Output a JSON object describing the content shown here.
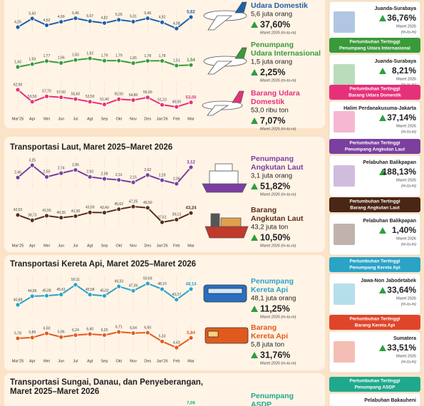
{
  "chart_data": [
    {
      "type": "line",
      "color": "#1f5fa8",
      "values": [
        4.26,
        5.43,
        4.52,
        4.99,
        5.46,
        5.07,
        4.82,
        5.26,
        5.01,
        5.46,
        4.92,
        4.08,
        5.62
      ],
      "value_labels": [
        "4,26",
        "5,43",
        "4,52",
        "4,99",
        "5,46",
        "5,07",
        "4,82",
        "5,26",
        "5,01",
        "5,46",
        "4,92",
        "4,08",
        "5,62"
      ]
    },
    {
      "type": "line",
      "color": "#3a9a3a",
      "values": [
        1.43,
        1.59,
        1.77,
        1.66,
        1.83,
        1.92,
        1.79,
        1.79,
        1.65,
        1.78,
        1.78,
        1.51,
        1.54
      ],
      "value_labels": [
        "1,43",
        "1,59",
        "1,77",
        "1,66",
        "1,83",
        "1,92",
        "1,79",
        "1,79",
        "1,65",
        "1,78",
        "1,78",
        "1,51",
        "1,54"
      ]
    },
    {
      "type": "line",
      "color": "#e6317a",
      "categories": [
        "Mar'25",
        "Apr",
        "Mei",
        "Jun",
        "Jul",
        "Agt",
        "Sep",
        "Okt",
        "Nov",
        "Des",
        "Jan'26",
        "Feb",
        "Mar"
      ],
      "values": [
        62.9,
        53.5,
        57.7,
        57.0,
        55.6,
        53.5,
        51.4,
        55.5,
        54.8,
        56.9,
        51.1,
        49.5,
        53.0
      ],
      "value_labels": [
        "62,90",
        "53,50",
        "57,70",
        "57,00",
        "55,60",
        "53,50",
        "51,40",
        "55,50",
        "54,80",
        "56,90",
        "51,10",
        "49,50",
        "53,00"
      ]
    },
    {
      "type": "line",
      "color": "#7b3fa0",
      "values": [
        2.46,
        3.25,
        2.5,
        2.74,
        2.95,
        2.5,
        2.38,
        2.31,
        2.15,
        2.62,
        2.29,
        2.06,
        3.12
      ],
      "value_labels": [
        "2,46",
        "3,25",
        "2,50",
        "2,74",
        "2,95",
        "2,50",
        "2,38",
        "2,31",
        "2,15",
        "2,62",
        "2,29",
        "2,06",
        "3,12"
      ]
    },
    {
      "type": "line",
      "color": "#5a2d1a",
      "categories": [
        "Mar'25",
        "Apr",
        "Mei",
        "Jun",
        "Jul",
        "Agt",
        "Sep",
        "Okt",
        "Nov",
        "Des",
        "Jan'26",
        "Feb",
        "Mar"
      ],
      "values": [
        42.02,
        38.73,
        41.55,
        40.35,
        41.3,
        43.59,
        43.49,
        45.62,
        47.25,
        46.5,
        37.51,
        39.13,
        43.24
      ],
      "value_labels": [
        "42,02",
        "38,73",
        "41,55",
        "40,35",
        "41,30",
        "43,59",
        "43,49",
        "45,62",
        "47,25",
        "46,50",
        "37,51",
        "39,13",
        "43,24"
      ]
    },
    {
      "type": "line",
      "color": "#2aa3c7",
      "values": [
        40.88,
        44.85,
        45.08,
        45.61,
        50.11,
        45.58,
        45.02,
        49.33,
        47.36,
        50.69,
        48.1,
        43.27,
        48.14
      ],
      "value_labels": [
        "40,88",
        "44,85",
        "45,08",
        "45,61",
        "50,11",
        "45,58",
        "45,02",
        "49,33",
        "47,36",
        "50,69",
        "48,10",
        "43,27",
        "48,14"
      ]
    },
    {
      "type": "line",
      "color": "#e05a1e",
      "categories": [
        "Mar'25",
        "Apr",
        "Mei",
        "Jun",
        "Jul",
        "Agt",
        "Sep",
        "Okt",
        "Nov",
        "Des",
        "Jan'26",
        "Feb",
        "Mar"
      ],
      "values": [
        5.78,
        5.89,
        6.5,
        5.96,
        6.24,
        6.4,
        6.25,
        6.71,
        6.54,
        6.6,
        5.33,
        4.43,
        5.84
      ],
      "value_labels": [
        "5,78",
        "5,89",
        "6,50",
        "5,96",
        "6,24",
        "6,40",
        "6,25",
        "6,71",
        "6,54",
        "6,60",
        "5,33",
        "4,43",
        "5,84"
      ]
    }
  ],
  "sections": [
    {
      "title_lines": [
        "Transportasi Laut, Maret 2025–Maret 2026"
      ]
    },
    {
      "title_lines": [
        "Transportasi Kereta Api, Maret 2025–Maret 2026"
      ]
    },
    {
      "title_lines": [
        "Transportasi Sungai, Danau, dan Penyeberangan,",
        "Maret 2025–Maret 2026"
      ],
      "partial_label": "7,06"
    }
  ],
  "highlights": [
    {
      "title_lines": [
        "Udara Domestik"
      ],
      "amount": "5,6 juta orang",
      "change": "37,60%",
      "period": "Maret 2026 (m-to-m)"
    },
    {
      "title_lines": [
        "Penumpang",
        "Udara Internasional"
      ],
      "amount": "1,5 juta orang",
      "change": "2,25%",
      "period": "Maret 2026 (m-to-m)"
    },
    {
      "title_lines": [
        "Barang Udara",
        "Domestik"
      ],
      "amount": "53,0 ribu ton",
      "change": "7,07%",
      "period": "Maret 2026 (m-to-m)"
    },
    {
      "title_lines": [
        "Penumpang",
        "Angkutan Laut"
      ],
      "amount": "3,1 juta orang",
      "change": "51,82%",
      "period": "Maret 2026 (m-to-m)"
    },
    {
      "title_lines": [
        "Barang",
        "Angkutan Laut"
      ],
      "amount": "43,2 juta ton",
      "change": "10,50%",
      "period": "Maret 2026 (m-to-m)"
    },
    {
      "title_lines": [
        "Penumpang",
        "Kereta Api"
      ],
      "amount": "48,1 juta orang",
      "change": "11,25%",
      "period": "Maret 2026 (m-to-m)"
    },
    {
      "title_lines": [
        "Barang",
        "Kereta Api"
      ],
      "amount": "5,8 juta ton",
      "change": "31,76%",
      "period": "Maret 2026 (m-to-m)"
    },
    {
      "title_lines": [
        "Penumpang",
        "ASDP"
      ]
    }
  ],
  "top_growth": [
    {
      "location": "Juanda-Surabaya",
      "change": "36,76%",
      "period": "Maret 2026",
      "note": "(m-to-m)"
    },
    {
      "header_lines": [
        "Pertumbuhan Tertinggi",
        "Penumpang Udara Internasional"
      ],
      "location": "Juanda-Surabaya",
      "change": "8,21%",
      "period": "Maret 2026",
      "note": "(m-to-m)"
    },
    {
      "header_lines": [
        "Pertumbuhan Tertinggi",
        "Barang Udara Domestik"
      ],
      "location": "Halim Perdanakusuma-Jakarta",
      "change": "37,14%",
      "period": "Maret 2026",
      "note": "(m-to-m)"
    },
    {
      "header_lines": [
        "Pertumbuhan Tertinggi",
        "Penumpang Angkutan Laut"
      ],
      "location": "Pelabuhan Balikpapan",
      "change": "188,13%",
      "period": "Maret 2026",
      "note": "(m-to-m)"
    },
    {
      "header_lines": [
        "Pertumbuhan Tertinggi",
        "Barang Angkutan Laut"
      ],
      "location": "Pelabuhan Balikpapan",
      "change": "1,40%",
      "period": "Maret 2026",
      "note": "(m-to-m)"
    },
    {
      "header_lines": [
        "Pertumbuhan Tertinggi",
        "Penumpang Kereta Api"
      ],
      "location": "Jawa-Non Jabodetabek",
      "change": "33,64%",
      "period": "Maret 2026",
      "note": "(m-to-m)"
    },
    {
      "header_lines": [
        "Pertumbuhan Tertinggi",
        "Barang Kereta Api"
      ],
      "location": "Sumatera",
      "change": "33,51%",
      "period": "Maret 2026",
      "note": "(m-to-m)"
    },
    {
      "header_lines": [
        "Pertumbuhan Tertinggi",
        "Penumpang ASDP"
      ],
      "location": "Pelabuhan Bakauheni"
    }
  ]
}
